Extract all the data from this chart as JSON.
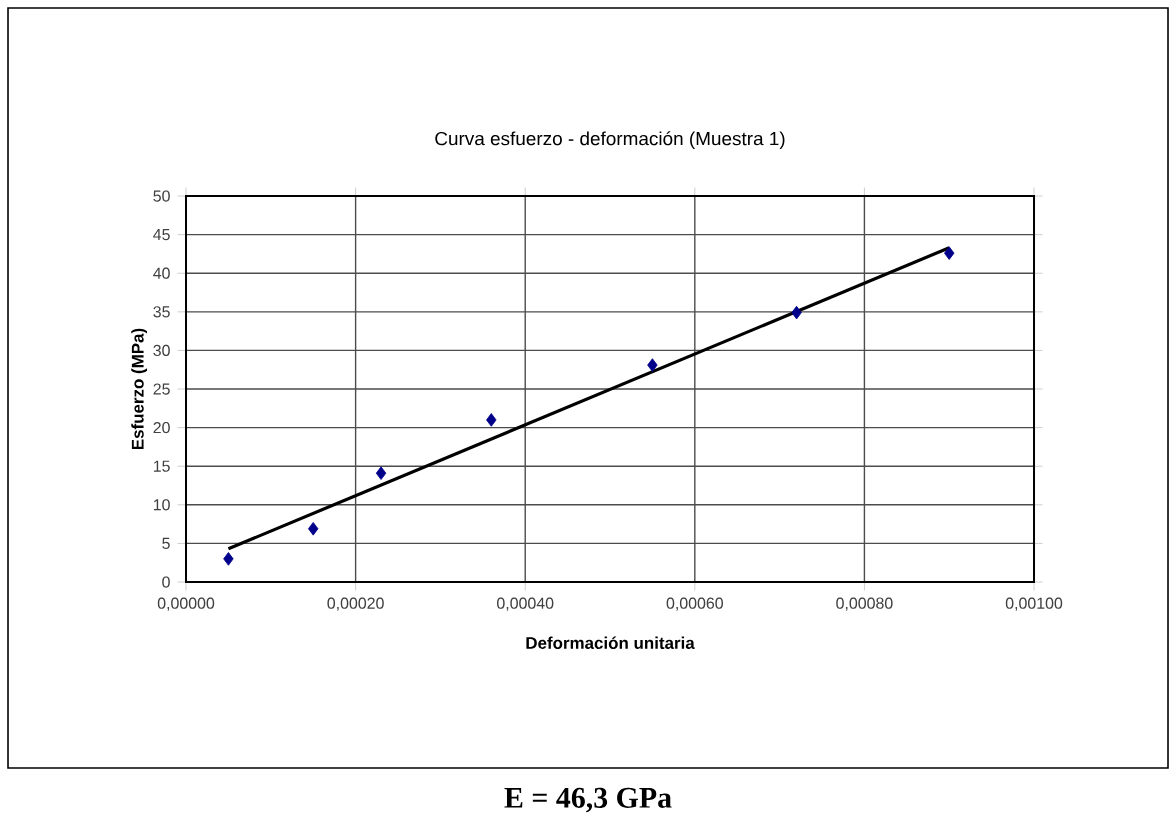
{
  "chart_data": {
    "type": "scatter",
    "title": "Curva esfuerzo - deformación (Muestra 1)",
    "xlabel": "Deformación unitaria",
    "ylabel": "Esfuerzo (MPa)",
    "x": [
      5e-05,
      0.00015,
      0.00023,
      0.00036,
      0.00055,
      0.00072,
      0.0009
    ],
    "series": [
      {
        "color": "#00008b",
        "marker": "diamond",
        "values": [
          3,
          6.9,
          14.1,
          21,
          28.1,
          34.9,
          42.6
        ]
      },
      {
        "type": "line",
        "color": "#000000",
        "marker": "none",
        "x": [
          5e-05,
          0.0009
        ],
        "values": [
          4.3,
          43.3
        ]
      }
    ],
    "xlim": [
      0,
      0.001
    ],
    "ylim": [
      0,
      50
    ],
    "xticks": [
      {
        "value": 0,
        "label": "0,00000"
      },
      {
        "value": 0.0002,
        "label": "0,00020"
      },
      {
        "value": 0.0004,
        "label": "0,00040"
      },
      {
        "value": 0.0006,
        "label": "0,00060"
      },
      {
        "value": 0.0008,
        "label": "0,00080"
      },
      {
        "value": 0.001,
        "label": "0,00100"
      }
    ],
    "yticks": [
      0,
      5,
      10,
      15,
      20,
      25,
      30,
      35,
      40,
      45,
      50
    ],
    "grid": true,
    "annotations": [
      "E =    46,3    GPa"
    ]
  }
}
